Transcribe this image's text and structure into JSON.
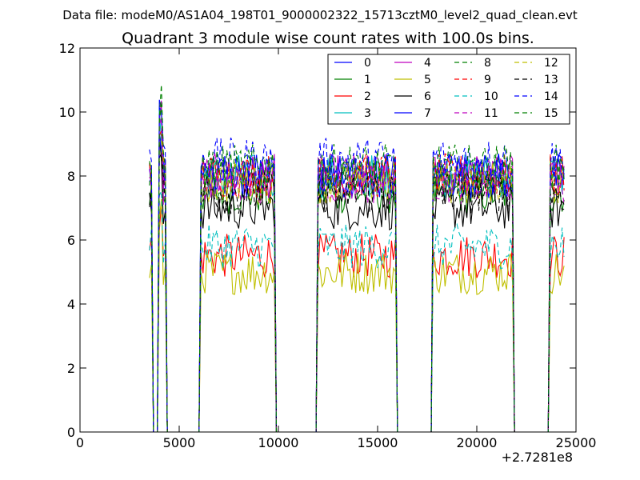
{
  "figure": {
    "suptitle": "Data file: modeM0/AS1A04_198T01_9000002322_15713cztM0_level2_quad_clean.evt",
    "offset_text": "+2.7281e8"
  },
  "chart_data": {
    "type": "line",
    "title": "Quadrant 3 module wise count rates with 100.0s bins.",
    "xlabel": "",
    "ylabel": "",
    "xlim": [
      0,
      25000
    ],
    "ylim": [
      0,
      12
    ],
    "x_offset": 272810000,
    "xticks": [
      0,
      5000,
      10000,
      15000,
      20000,
      25000
    ],
    "xtick_labels": [
      "0",
      "5000",
      "10000",
      "15000",
      "20000",
      "25000"
    ],
    "yticks": [
      0,
      2,
      4,
      6,
      8,
      10,
      12
    ],
    "ytick_labels": [
      "0",
      "2",
      "4",
      "6",
      "8",
      "10",
      "12"
    ],
    "grid": false,
    "legend_position": "top-right",
    "legend_columns": 4,
    "gti": [
      [
        3500,
        3600
      ],
      [
        4000,
        4300
      ],
      [
        6100,
        9800
      ],
      [
        12000,
        15900
      ],
      [
        17800,
        21800
      ],
      [
        23700,
        24400
      ]
    ],
    "series": [
      {
        "name": "0",
        "color": "#0000ff",
        "dash": "solid",
        "level": 8.0
      },
      {
        "name": "1",
        "color": "#008000",
        "dash": "solid",
        "level": 7.5
      },
      {
        "name": "2",
        "color": "#ff0000",
        "dash": "solid",
        "level": 5.5
      },
      {
        "name": "3",
        "color": "#00bfbf",
        "dash": "solid",
        "level": 8.0
      },
      {
        "name": "4",
        "color": "#bf00bf",
        "dash": "solid",
        "level": 8.0
      },
      {
        "name": "5",
        "color": "#bfbf00",
        "dash": "solid",
        "level": 5.0
      },
      {
        "name": "6",
        "color": "#000000",
        "dash": "solid",
        "level": 7.0
      },
      {
        "name": "7",
        "color": "#0000ff",
        "dash": "solid",
        "level": 8.0
      },
      {
        "name": "8",
        "color": "#008000",
        "dash": "dashed",
        "level": 8.0
      },
      {
        "name": "9",
        "color": "#ff0000",
        "dash": "dashed",
        "level": 8.0
      },
      {
        "name": "10",
        "color": "#00bfbf",
        "dash": "dashed",
        "level": 5.8
      },
      {
        "name": "11",
        "color": "#bf00bf",
        "dash": "dashed",
        "level": 7.8
      },
      {
        "name": "12",
        "color": "#bfbf00",
        "dash": "dashed",
        "level": 7.8
      },
      {
        "name": "13",
        "color": "#000000",
        "dash": "dashed",
        "level": 7.5
      },
      {
        "name": "14",
        "color": "#0000ff",
        "dash": "dashed",
        "level": 8.5
      },
      {
        "name": "15",
        "color": "#008000",
        "dash": "dashed",
        "level": 8.3
      }
    ]
  }
}
